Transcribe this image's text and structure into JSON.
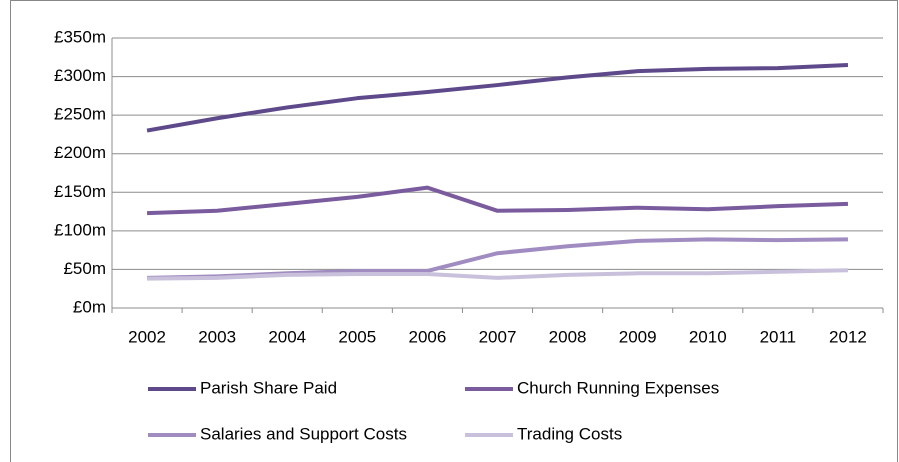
{
  "chart_data": {
    "type": "line",
    "categories": [
      "2002",
      "2003",
      "2004",
      "2005",
      "2006",
      "2007",
      "2008",
      "2009",
      "2010",
      "2011",
      "2012"
    ],
    "series": [
      {
        "name": "Parish Share Paid",
        "color": "#5e4a8a",
        "values": [
          230,
          246,
          260,
          272,
          280,
          289,
          299,
          307,
          310,
          311,
          315
        ]
      },
      {
        "name": "Church Running Expenses",
        "color": "#7a5c9e",
        "values": [
          123,
          126,
          135,
          144,
          156,
          126,
          127,
          130,
          128,
          132,
          135
        ]
      },
      {
        "name": "Salaries and Support Costs",
        "color": "#a08cc0",
        "values": [
          39,
          41,
          45,
          48,
          48,
          71,
          80,
          87,
          89,
          88,
          89
        ]
      },
      {
        "name": "Trading Costs",
        "color": "#c9c0dc",
        "values": [
          38,
          39,
          43,
          44,
          44,
          39,
          43,
          45,
          45,
          47,
          49
        ]
      }
    ],
    "ylim": [
      0,
      350
    ],
    "yticks": [
      {
        "value": 0,
        "label": "£0m"
      },
      {
        "value": 50,
        "label": "£50m"
      },
      {
        "value": 100,
        "label": "£100m"
      },
      {
        "value": 150,
        "label": "£150m"
      },
      {
        "value": 200,
        "label": "£200m"
      },
      {
        "value": 250,
        "label": "£250m"
      },
      {
        "value": 300,
        "label": "£300m"
      },
      {
        "value": 350,
        "label": "£350m"
      }
    ],
    "grid": true,
    "legend": "bottom"
  }
}
